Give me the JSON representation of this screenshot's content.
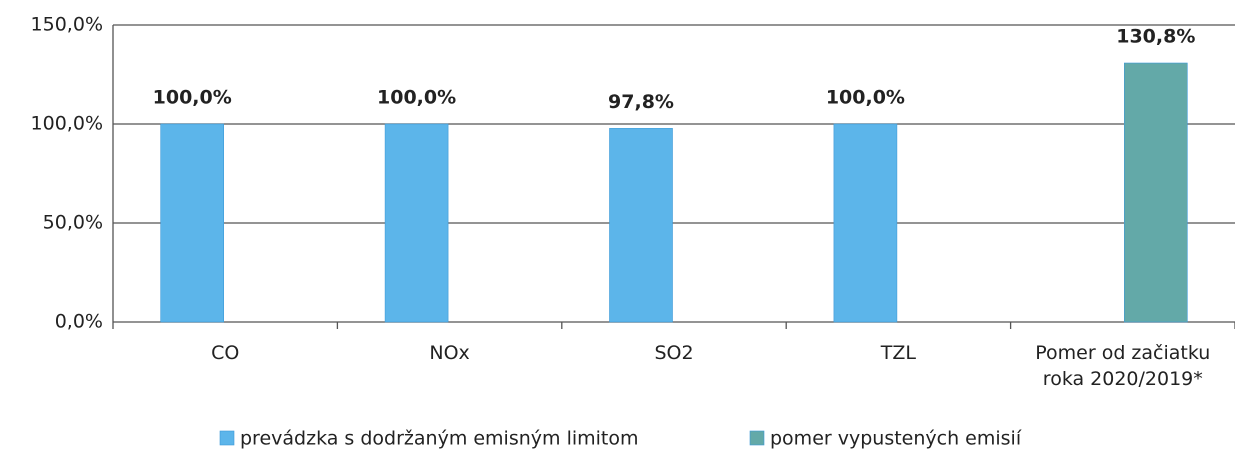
{
  "chart_data": {
    "type": "bar",
    "categories": [
      "CO",
      "NOx",
      "SO2",
      "TZL",
      "Pomer  od začiatku roka 2020/2019*"
    ],
    "series": [
      {
        "name": "prevádzka s dodržaným emisným limitom",
        "color": "#5cb5ea",
        "values": [
          100,
          100,
          97.8,
          100,
          null
        ],
        "value_labels": [
          "100,0%",
          "100,0%",
          "97,8%",
          "100,0%",
          null
        ]
      },
      {
        "name": "pomer vypustených emisií",
        "color": "#63a9a8",
        "values": [
          null,
          null,
          null,
          null,
          130.8
        ],
        "value_labels": [
          null,
          null,
          null,
          null,
          "130,8%"
        ]
      }
    ],
    "ylim": [
      0,
      150
    ],
    "yticks": [
      {
        "value": 0,
        "label": "0,0%"
      },
      {
        "value": 50,
        "label": "50,0%"
      },
      {
        "value": 100,
        "label": "100,0%"
      },
      {
        "value": 150,
        "label": "150,0%"
      }
    ],
    "grid": true,
    "legend": "bottom"
  }
}
